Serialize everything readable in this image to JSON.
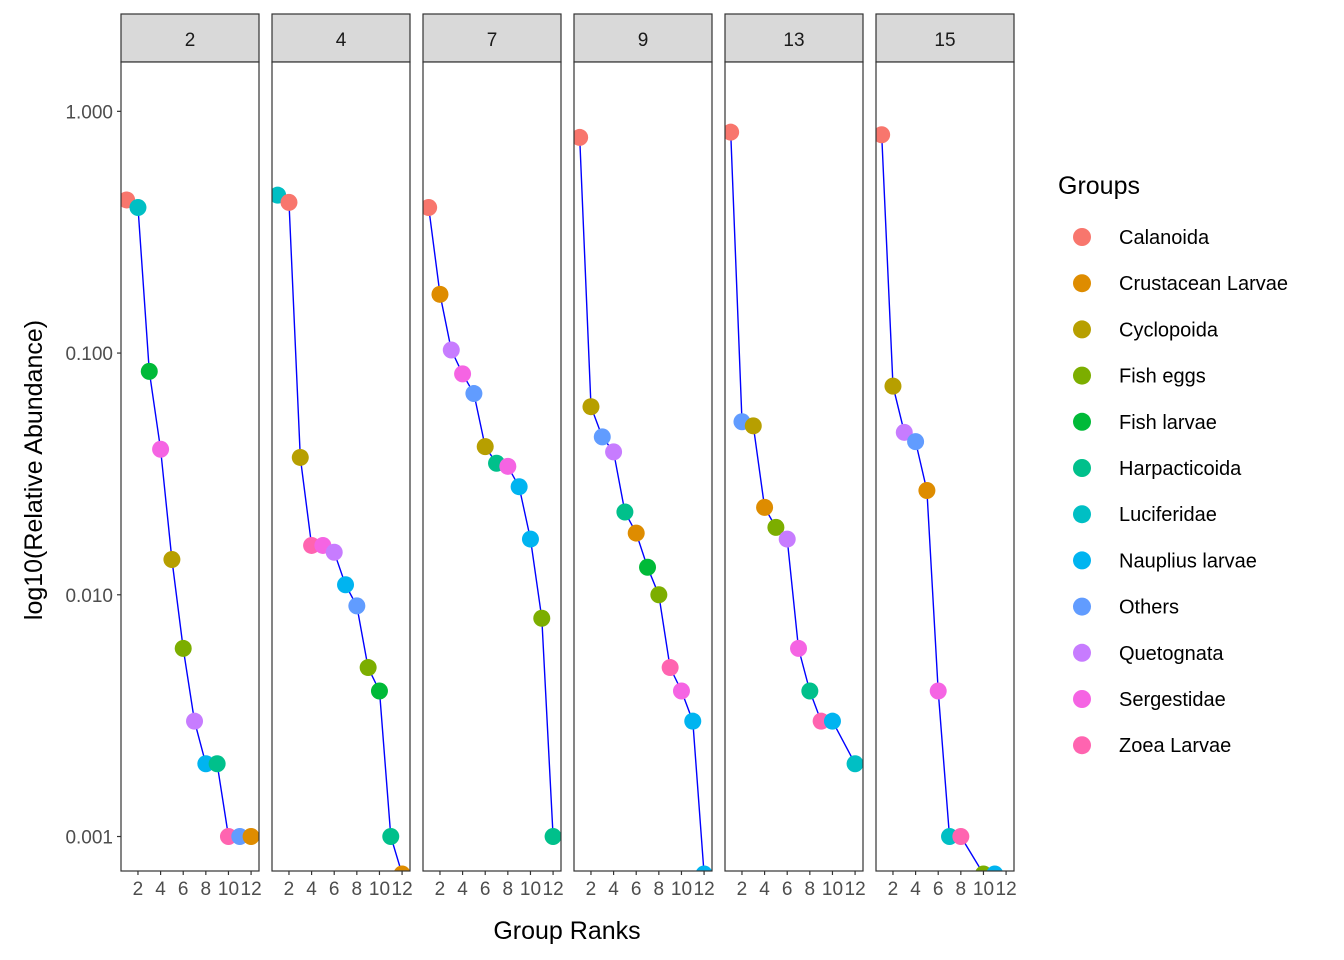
{
  "chart_data": {
    "type": "scatter",
    "facets": [
      {
        "label": "2",
        "points": [
          {
            "group": "Calanoida",
            "rank": 1,
            "value": 0.43
          },
          {
            "group": "Luciferidae",
            "rank": 2,
            "value": 0.4
          },
          {
            "group": "Fish larvae",
            "rank": 3,
            "value": 0.084
          },
          {
            "group": "Sergestidae",
            "rank": 4,
            "value": 0.04
          },
          {
            "group": "Cyclopoida",
            "rank": 5,
            "value": 0.014
          },
          {
            "group": "Fish eggs",
            "rank": 6,
            "value": 0.006
          },
          {
            "group": "Quetognata",
            "rank": 7,
            "value": 0.003
          },
          {
            "group": "Nauplius larvae",
            "rank": 8,
            "value": 0.002
          },
          {
            "group": "Harpacticoida",
            "rank": 9,
            "value": 0.002
          },
          {
            "group": "Zoea Larvae",
            "rank": 10,
            "value": 0.001
          },
          {
            "group": "Others",
            "rank": 11,
            "value": 0.001
          },
          {
            "group": "Crustacean Larvae",
            "rank": 12,
            "value": 0.001
          }
        ]
      },
      {
        "label": "4",
        "points": [
          {
            "group": "Luciferidae",
            "rank": 1,
            "value": 0.45
          },
          {
            "group": "Calanoida",
            "rank": 2,
            "value": 0.42
          },
          {
            "group": "Cyclopoida",
            "rank": 3,
            "value": 0.037
          },
          {
            "group": "Zoea Larvae",
            "rank": 4,
            "value": 0.016
          },
          {
            "group": "Sergestidae",
            "rank": 5,
            "value": 0.016
          },
          {
            "group": "Quetognata",
            "rank": 6,
            "value": 0.015
          },
          {
            "group": "Nauplius larvae",
            "rank": 7,
            "value": 0.011
          },
          {
            "group": "Others",
            "rank": 8,
            "value": 0.009
          },
          {
            "group": "Fish eggs",
            "rank": 9,
            "value": 0.005
          },
          {
            "group": "Fish larvae",
            "rank": 10,
            "value": 0.004
          },
          {
            "group": "Harpacticoida",
            "rank": 11,
            "value": 0.001
          },
          {
            "group": "Crustacean Larvae",
            "rank": 12,
            "value": 0.0007
          }
        ]
      },
      {
        "label": "7",
        "points": [
          {
            "group": "Calanoida",
            "rank": 1,
            "value": 0.4
          },
          {
            "group": "Crustacean Larvae",
            "rank": 2,
            "value": 0.175
          },
          {
            "group": "Quetognata",
            "rank": 3,
            "value": 0.103
          },
          {
            "group": "Sergestidae",
            "rank": 4,
            "value": 0.082
          },
          {
            "group": "Others",
            "rank": 5,
            "value": 0.068
          },
          {
            "group": "Cyclopoida",
            "rank": 6,
            "value": 0.041
          },
          {
            "group": "Harpacticoida",
            "rank": 7,
            "value": 0.035
          },
          {
            "group": "Sergestidae",
            "rank": 8,
            "value": 0.034
          },
          {
            "group": "Nauplius larvae",
            "rank": 9,
            "value": 0.028
          },
          {
            "group": "Nauplius larvae",
            "rank": 10,
            "value": 0.017
          },
          {
            "group": "Fish eggs",
            "rank": 11,
            "value": 0.008
          },
          {
            "group": "Harpacticoida",
            "rank": 12,
            "value": 0.001
          }
        ]
      },
      {
        "label": "9",
        "points": [
          {
            "group": "Calanoida",
            "rank": 1,
            "value": 0.78
          },
          {
            "group": "Cyclopoida",
            "rank": 2,
            "value": 0.06
          },
          {
            "group": "Others",
            "rank": 3,
            "value": 0.045
          },
          {
            "group": "Quetognata",
            "rank": 4,
            "value": 0.039
          },
          {
            "group": "Harpacticoida",
            "rank": 5,
            "value": 0.022
          },
          {
            "group": "Crustacean Larvae",
            "rank": 6,
            "value": 0.018
          },
          {
            "group": "Fish larvae",
            "rank": 7,
            "value": 0.013
          },
          {
            "group": "Fish eggs",
            "rank": 8,
            "value": 0.01
          },
          {
            "group": "Zoea Larvae",
            "rank": 9,
            "value": 0.005
          },
          {
            "group": "Sergestidae",
            "rank": 10,
            "value": 0.004
          },
          {
            "group": "Nauplius larvae",
            "rank": 11,
            "value": 0.003
          },
          {
            "group": "Nauplius larvae",
            "rank": 12,
            "value": 0.0007
          }
        ]
      },
      {
        "label": "13",
        "points": [
          {
            "group": "Calanoida",
            "rank": 1,
            "value": 0.82
          },
          {
            "group": "Others",
            "rank": 2,
            "value": 0.052
          },
          {
            "group": "Cyclopoida",
            "rank": 3,
            "value": 0.05
          },
          {
            "group": "Crustacean Larvae",
            "rank": 4,
            "value": 0.023
          },
          {
            "group": "Fish eggs",
            "rank": 5,
            "value": 0.019
          },
          {
            "group": "Quetognata",
            "rank": 6,
            "value": 0.017
          },
          {
            "group": "Sergestidae",
            "rank": 7,
            "value": 0.006
          },
          {
            "group": "Harpacticoida",
            "rank": 8,
            "value": 0.004
          },
          {
            "group": "Zoea Larvae",
            "rank": 9,
            "value": 0.003
          },
          {
            "group": "Nauplius larvae",
            "rank": 10,
            "value": 0.003
          },
          {
            "group": "Luciferidae",
            "rank": 12,
            "value": 0.002
          }
        ]
      },
      {
        "label": "15",
        "points": [
          {
            "group": "Calanoida",
            "rank": 1,
            "value": 0.8
          },
          {
            "group": "Cyclopoida",
            "rank": 2,
            "value": 0.073
          },
          {
            "group": "Quetognata",
            "rank": 3,
            "value": 0.047
          },
          {
            "group": "Others",
            "rank": 4,
            "value": 0.043
          },
          {
            "group": "Crustacean Larvae",
            "rank": 5,
            "value": 0.027
          },
          {
            "group": "Sergestidae",
            "rank": 6,
            "value": 0.004
          },
          {
            "group": "Luciferidae",
            "rank": 7,
            "value": 0.001
          },
          {
            "group": "Zoea Larvae",
            "rank": 8,
            "value": 0.001
          },
          {
            "group": "Fish eggs",
            "rank": 10,
            "value": 0.0007
          },
          {
            "group": "Nauplius larvae",
            "rank": 11,
            "value": 0.0007
          }
        ]
      }
    ],
    "xlabel": "Group Ranks",
    "ylabel": "log10(Relative Abundance)",
    "x_ticks": [
      2,
      4,
      6,
      8,
      10,
      12
    ],
    "y_ticks": [
      {
        "value": 0.001,
        "label": "0.001"
      },
      {
        "value": 0.01,
        "label": "0.010"
      },
      {
        "value": 0.1,
        "label": "0.100"
      },
      {
        "value": 1.0,
        "label": "1.000"
      }
    ],
    "y_scale": "log10",
    "xlim": [
      0.5,
      12.7
    ],
    "ylim": [
      0.00072,
      1.6
    ],
    "line_color": "#0000FF",
    "legend": {
      "title": "Groups",
      "placement": "right",
      "items": [
        {
          "name": "Calanoida",
          "color": "#F8766D"
        },
        {
          "name": "Crustacean Larvae",
          "color": "#DE8C00"
        },
        {
          "name": "Cyclopoida",
          "color": "#B79F00"
        },
        {
          "name": "Fish eggs",
          "color": "#7CAE00"
        },
        {
          "name": "Fish larvae",
          "color": "#00BA38"
        },
        {
          "name": "Harpacticoida",
          "color": "#00C08B"
        },
        {
          "name": "Luciferidae",
          "color": "#00BFC4"
        },
        {
          "name": "Nauplius larvae",
          "color": "#00B4F0"
        },
        {
          "name": "Others",
          "color": "#619CFF"
        },
        {
          "name": "Quetognata",
          "color": "#C77CFF"
        },
        {
          "name": "Sergestidae",
          "color": "#F564E3"
        },
        {
          "name": "Zoea Larvae",
          "color": "#FF64B0"
        }
      ]
    }
  }
}
